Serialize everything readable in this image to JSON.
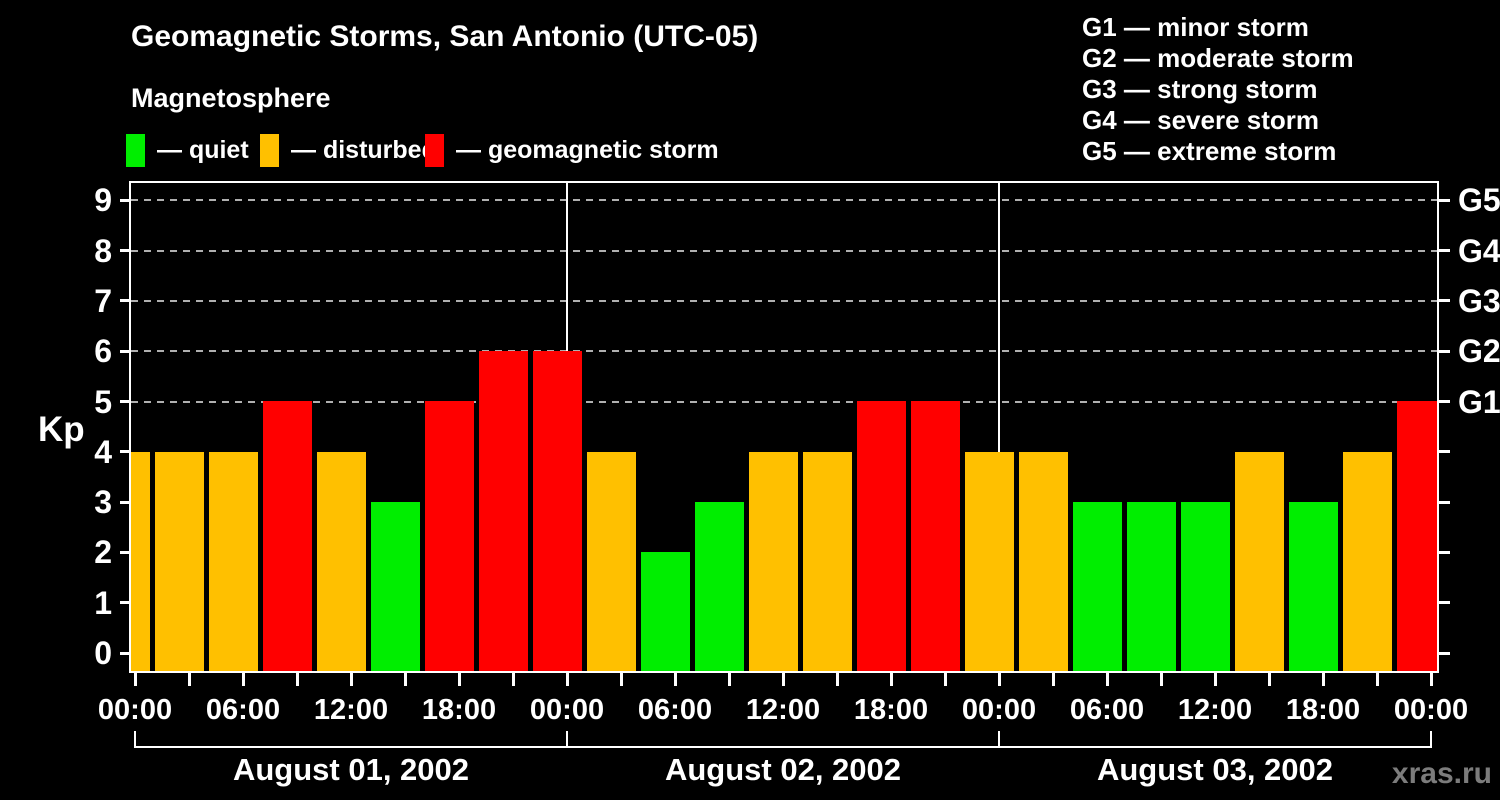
{
  "header": {
    "title": "Geomagnetic Storms, San Antonio (UTC-05)",
    "subtitle": "Magnetosphere"
  },
  "legend": {
    "items": [
      {
        "key": "quiet",
        "label": "— quiet"
      },
      {
        "key": "disturbed",
        "label": "— disturbed"
      },
      {
        "key": "storm",
        "label": "— geomagnetic storm"
      }
    ]
  },
  "storm_scale_legend": {
    "lines": [
      "G1 — minor storm",
      "G2 — moderate storm",
      "G3 — strong storm",
      "G4 — severe storm",
      "G5 — extreme storm"
    ]
  },
  "colors": {
    "quiet": "#00ee00",
    "disturbed": "#ffc000",
    "storm": "#ff0000",
    "background": "#000000",
    "axis": "#ffffff",
    "gridline": "#b0b0b0",
    "watermark": "#7c7c7c"
  },
  "chart_data": {
    "type": "bar",
    "title": "Geomagnetic Storms, San Antonio (UTC-05)",
    "subtitle": "Magnetosphere",
    "ylabel": "Kp",
    "ylim": [
      0,
      9
    ],
    "y_ticks": [
      0,
      1,
      2,
      3,
      4,
      5,
      6,
      7,
      8,
      9
    ],
    "gridlines_at_kp": [
      5,
      6,
      7,
      8,
      9
    ],
    "grid_style": "dashed horizontal lines at storm levels only",
    "right_axis": [
      {
        "kp": 5,
        "label": "G1"
      },
      {
        "kp": 6,
        "label": "G2"
      },
      {
        "kp": 7,
        "label": "G3"
      },
      {
        "kp": 8,
        "label": "G4"
      },
      {
        "kp": 9,
        "label": "G5"
      }
    ],
    "x_step_hours": 3,
    "x_major_labels": [
      "00:00",
      "06:00",
      "12:00",
      "18:00",
      "00:00",
      "06:00",
      "12:00",
      "18:00",
      "00:00",
      "06:00",
      "12:00",
      "18:00",
      "00:00"
    ],
    "days": [
      {
        "label": "August 01, 2002"
      },
      {
        "label": "August 02, 2002"
      },
      {
        "label": "August 03, 2002"
      }
    ],
    "day_divider_tick_indices": [
      8,
      16
    ],
    "series": [
      {
        "name": "Kp",
        "values": [
          4,
          4,
          4,
          5,
          4,
          3,
          5,
          6,
          6,
          4,
          2,
          3,
          4,
          4,
          5,
          5,
          4,
          4,
          3,
          3,
          3,
          4,
          3,
          4,
          5
        ]
      }
    ],
    "color_rule": {
      "quiet_max_kp": 3,
      "disturbed_kp": 4,
      "storm_min_kp": 5
    }
  },
  "watermark": "xras.ru"
}
